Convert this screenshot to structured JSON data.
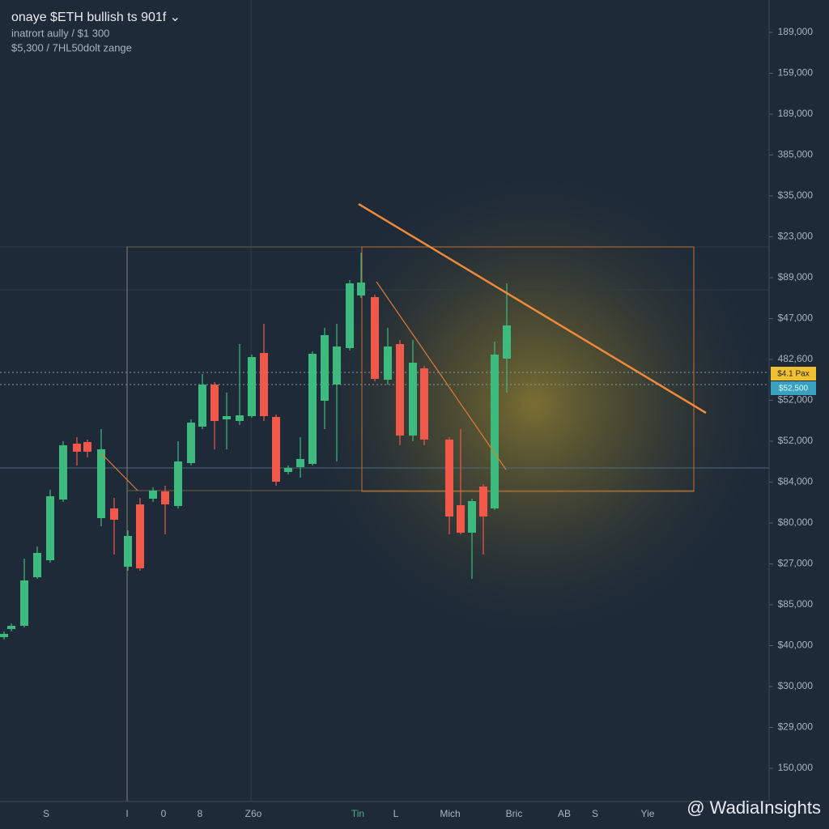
{
  "header": {
    "title": "onaye $ETH bullish ts 901f ⌄",
    "line1": "inatrort aully / $1 300",
    "line2": "$5,300 / 7HL50dolt zange"
  },
  "price_axis": [
    "189,000",
    "159,000",
    "189,000",
    "385,000",
    "$35,000",
    "$23,000",
    "$89,000",
    "$47,000",
    "482,600",
    "$52,000",
    "$52,000",
    "$84,000",
    "$80,000",
    "$27,000",
    "$85,000",
    "$40,000",
    "$30,000",
    "$29,000",
    "150,000"
  ],
  "price_tags": {
    "yellow": "$4.1 Pax",
    "blue": "$52,500"
  },
  "time_axis": [
    "S",
    "I",
    "0",
    "8",
    "Z6o",
    "Tin",
    "L",
    "Mich",
    "Bric",
    "AB",
    "S",
    "Yie"
  ],
  "watermark": "@ WadiaInsights"
}
